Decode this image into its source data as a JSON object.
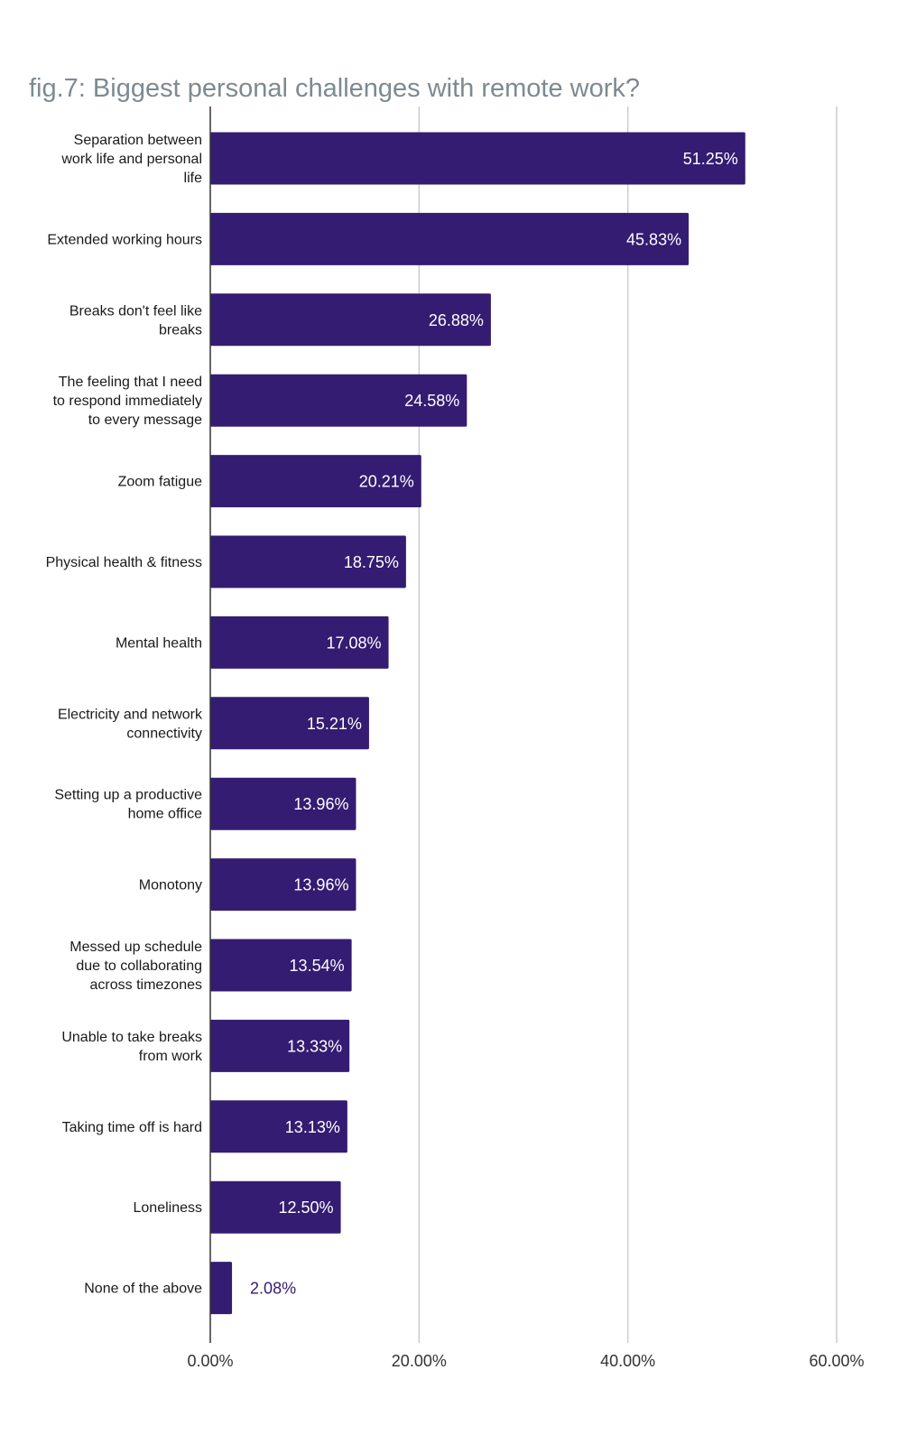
{
  "chart_data": {
    "type": "bar",
    "orientation": "horizontal",
    "title": "fig.7: Biggest personal challenges with remote work?",
    "categories": [
      "Separation between work life and personal life",
      "Extended working hours",
      "Breaks don't feel like breaks",
      "The feeling that I need to respond immediately to every message",
      "Zoom fatigue",
      "Physical health & fitness",
      "Mental health",
      "Electricity and network connectivity",
      "Setting up a productive home office",
      "Monotony",
      "Messed up schedule due to collaborating across timezones",
      "Unable to take breaks from work",
      "Taking time off is hard",
      "Loneliness",
      "None of the above"
    ],
    "category_lines": [
      [
        "Separation between",
        "work life and personal",
        "life"
      ],
      [
        "Extended working hours"
      ],
      [
        "Breaks don't feel like",
        "breaks"
      ],
      [
        "The feeling that I need",
        "to respond immediately",
        "to every message"
      ],
      [
        "Zoom fatigue"
      ],
      [
        "Physical health & fitness"
      ],
      [
        "Mental health"
      ],
      [
        "Electricity and network",
        "connectivity"
      ],
      [
        "Setting up a productive",
        "home office"
      ],
      [
        "Monotony"
      ],
      [
        "Messed up schedule",
        "due to collaborating",
        "across timezones"
      ],
      [
        "Unable to take breaks",
        "from work"
      ],
      [
        "Taking time off is hard"
      ],
      [
        "Loneliness"
      ],
      [
        "None of the above"
      ]
    ],
    "values": [
      51.25,
      45.83,
      26.88,
      24.58,
      20.21,
      18.75,
      17.08,
      15.21,
      13.96,
      13.96,
      13.54,
      13.33,
      13.13,
      12.5,
      2.08
    ],
    "value_labels": [
      "51.25%",
      "45.83%",
      "26.88%",
      "24.58%",
      "20.21%",
      "18.75%",
      "17.08%",
      "15.21%",
      "13.96%",
      "13.96%",
      "13.54%",
      "13.33%",
      "13.13%",
      "12.50%",
      "2.08%"
    ],
    "xlim": [
      0,
      60
    ],
    "xticks": [
      0,
      20,
      40,
      60
    ],
    "xtick_labels": [
      "0.00%",
      "20.00%",
      "40.00%",
      "60.00%"
    ],
    "xlabel": "",
    "ylabel": "",
    "grid": true,
    "legend": "none",
    "colors": {
      "bar": "#341c72",
      "bar_label_inside": "#ffffff",
      "bar_label_outside": "#341c72",
      "grid": "#cccccc",
      "axis": "#333333",
      "title": "#7d8a91"
    }
  }
}
